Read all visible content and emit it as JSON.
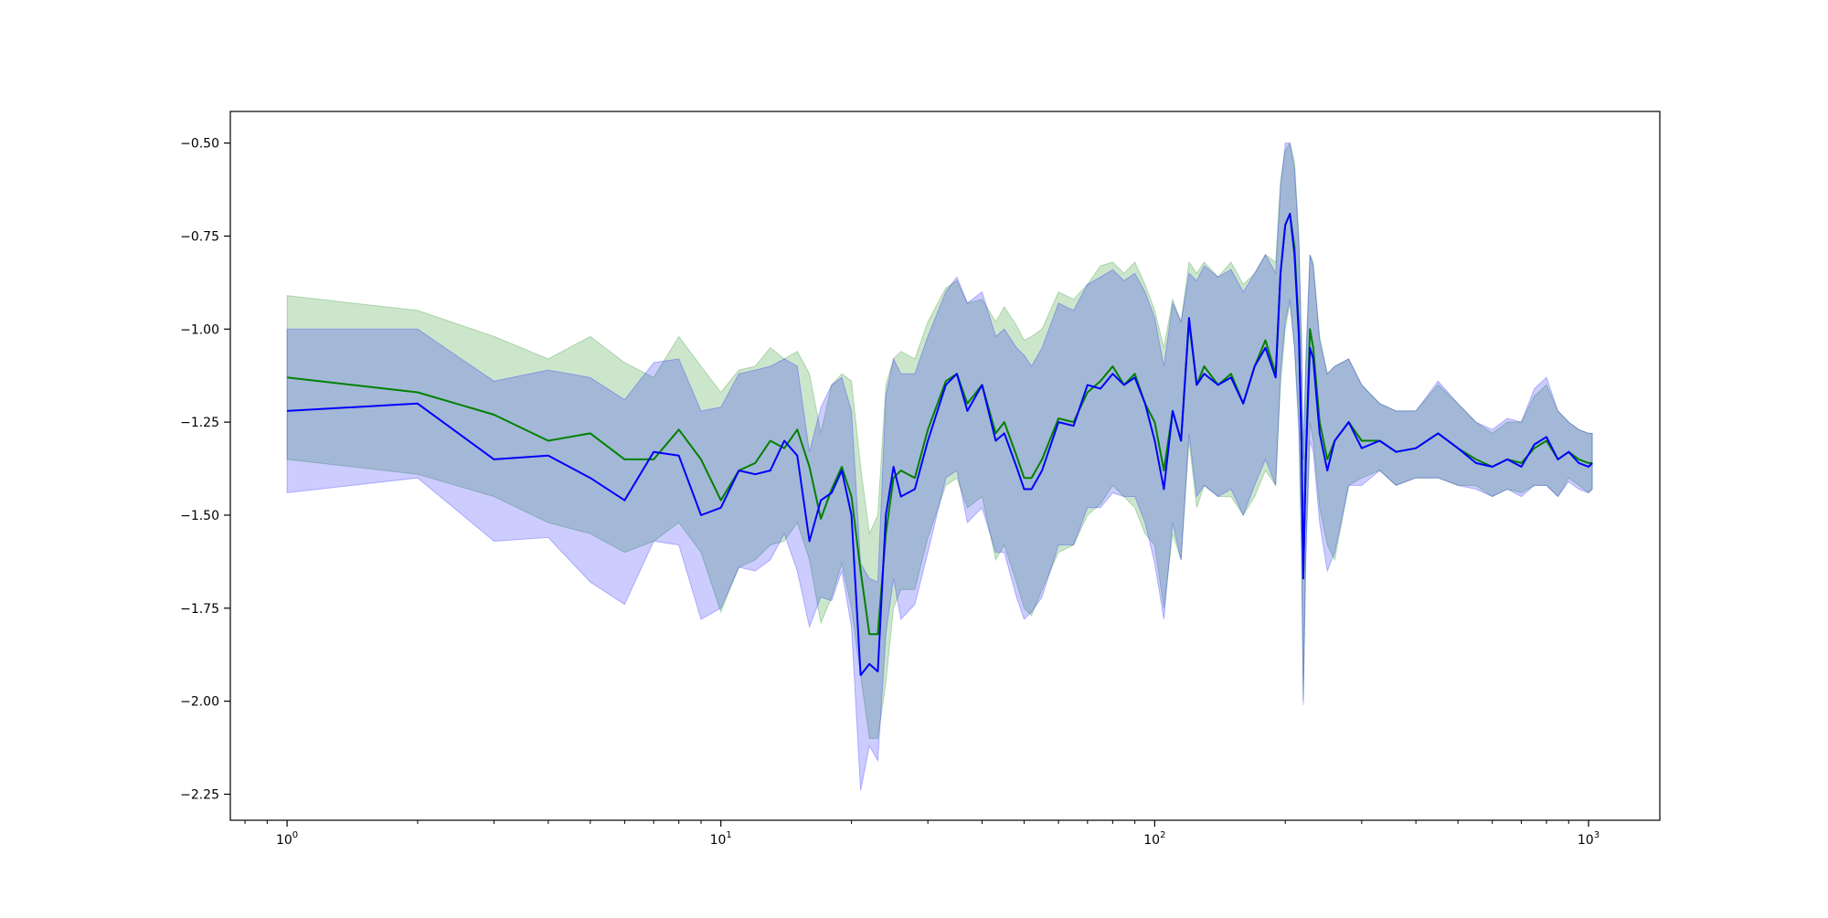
{
  "chart_data": {
    "type": "line",
    "title": "",
    "xlabel": "",
    "ylabel": "",
    "xscale": "log",
    "xlim": [
      0.74,
      1460
    ],
    "ylim": [
      -2.32,
      -0.415
    ],
    "grid": false,
    "legend": "none",
    "x_ticks": [
      {
        "base": "10",
        "exp": "0",
        "value": 1
      },
      {
        "base": "10",
        "exp": "1",
        "value": 10
      },
      {
        "base": "10",
        "exp": "2",
        "value": 100
      },
      {
        "base": "10",
        "exp": "3",
        "value": 1000
      }
    ],
    "y_ticks": [
      {
        "label": "−0.50",
        "value": -0.5
      },
      {
        "label": "−0.75",
        "value": -0.75
      },
      {
        "label": "−1.00",
        "value": -1.0
      },
      {
        "label": "−1.25",
        "value": -1.25
      },
      {
        "label": "−1.50",
        "value": -1.5
      },
      {
        "label": "−1.75",
        "value": -1.75
      },
      {
        "label": "−2.00",
        "value": -2.0
      },
      {
        "label": "−2.25",
        "value": -2.25
      }
    ],
    "series": [
      {
        "color": "#008000",
        "band_color": "#008000",
        "band_opacity": 0.2,
        "points": [
          [
            1,
            -1.13,
            -0.91,
            -1.35
          ],
          [
            2,
            -1.17,
            -0.95,
            -1.39
          ],
          [
            3,
            -1.23,
            -1.02,
            -1.45
          ],
          [
            4,
            -1.3,
            -1.08,
            -1.52
          ],
          [
            5,
            -1.28,
            -1.02,
            -1.55
          ],
          [
            6,
            -1.35,
            -1.09,
            -1.6
          ],
          [
            7,
            -1.35,
            -1.13,
            -1.57
          ],
          [
            8,
            -1.27,
            -1.02,
            -1.52
          ],
          [
            9,
            -1.35,
            -1.1,
            -1.6
          ],
          [
            10,
            -1.46,
            -1.17,
            -1.76
          ],
          [
            11,
            -1.38,
            -1.11,
            -1.64
          ],
          [
            12,
            -1.36,
            -1.1,
            -1.62
          ],
          [
            13,
            -1.3,
            -1.05,
            -1.58
          ],
          [
            14,
            -1.32,
            -1.08,
            -1.57
          ],
          [
            15,
            -1.27,
            -1.06,
            -1.52
          ],
          [
            16,
            -1.37,
            -1.12,
            -1.62
          ],
          [
            17,
            -1.51,
            -1.28,
            -1.79
          ],
          [
            18,
            -1.43,
            -1.15,
            -1.72
          ],
          [
            19,
            -1.37,
            -1.12,
            -1.63
          ],
          [
            20,
            -1.45,
            -1.14,
            -1.75
          ],
          [
            21,
            -1.65,
            -1.37,
            -1.93
          ],
          [
            22,
            -1.82,
            -1.55,
            -2.1
          ],
          [
            23,
            -1.82,
            -1.5,
            -2.1
          ],
          [
            24,
            -1.55,
            -1.15,
            -1.95
          ],
          [
            25,
            -1.4,
            -1.08,
            -1.75
          ],
          [
            26,
            -1.38,
            -1.06,
            -1.7
          ],
          [
            28,
            -1.4,
            -1.08,
            -1.7
          ],
          [
            30,
            -1.27,
            -0.98,
            -1.56
          ],
          [
            33,
            -1.14,
            -0.89,
            -1.42
          ],
          [
            35,
            -1.12,
            -0.87,
            -1.4
          ],
          [
            37,
            -1.2,
            -0.93,
            -1.48
          ],
          [
            40,
            -1.15,
            -0.92,
            -1.45
          ],
          [
            43,
            -1.28,
            -0.98,
            -1.62
          ],
          [
            45,
            -1.25,
            -0.94,
            -1.58
          ],
          [
            48,
            -1.34,
            -0.99,
            -1.68
          ],
          [
            50,
            -1.4,
            -1.03,
            -1.75
          ],
          [
            52,
            -1.4,
            -1.02,
            -1.77
          ],
          [
            55,
            -1.35,
            -1.0,
            -1.7
          ],
          [
            60,
            -1.24,
            -0.9,
            -1.6
          ],
          [
            65,
            -1.25,
            -0.92,
            -1.58
          ],
          [
            70,
            -1.17,
            -0.88,
            -1.5
          ],
          [
            75,
            -1.14,
            -0.83,
            -1.47
          ],
          [
            80,
            -1.1,
            -0.82,
            -1.42
          ],
          [
            85,
            -1.15,
            -0.85,
            -1.45
          ],
          [
            90,
            -1.12,
            -0.82,
            -1.48
          ],
          [
            95,
            -1.2,
            -0.88,
            -1.55
          ],
          [
            100,
            -1.25,
            -0.95,
            -1.58
          ],
          [
            105,
            -1.38,
            -1.05,
            -1.75
          ],
          [
            110,
            -1.22,
            -0.92,
            -1.55
          ],
          [
            115,
            -1.3,
            -0.98,
            -1.62
          ],
          [
            120,
            -0.98,
            -0.82,
            -1.3
          ],
          [
            125,
            -1.15,
            -0.85,
            -1.48
          ],
          [
            130,
            -1.1,
            -0.82,
            -1.42
          ],
          [
            140,
            -1.15,
            -0.86,
            -1.45
          ],
          [
            150,
            -1.12,
            -0.82,
            -1.45
          ],
          [
            160,
            -1.2,
            -0.88,
            -1.5
          ],
          [
            170,
            -1.1,
            -0.85,
            -1.45
          ],
          [
            180,
            -1.03,
            -0.8,
            -1.38
          ],
          [
            190,
            -1.12,
            -0.82,
            -1.42
          ],
          [
            195,
            -0.85,
            -0.6,
            -1.15
          ],
          [
            200,
            -0.72,
            -0.52,
            -1.0
          ],
          [
            205,
            -0.69,
            -0.5,
            -0.93
          ],
          [
            210,
            -0.78,
            -0.55,
            -1.05
          ],
          [
            215,
            -1.0,
            -0.75,
            -1.25
          ],
          [
            218,
            -1.32,
            -1.05,
            -1.58
          ],
          [
            220,
            -1.67,
            -1.35,
            -2.0
          ],
          [
            223,
            -1.35,
            -1.1,
            -1.6
          ],
          [
            228,
            -1.0,
            -0.8,
            -1.25
          ],
          [
            232,
            -1.05,
            -0.82,
            -1.3
          ],
          [
            240,
            -1.25,
            -1.02,
            -1.48
          ],
          [
            250,
            -1.35,
            -1.12,
            -1.58
          ],
          [
            260,
            -1.3,
            -1.1,
            -1.62
          ],
          [
            280,
            -1.25,
            -1.08,
            -1.42
          ],
          [
            300,
            -1.3,
            -1.15,
            -1.4
          ],
          [
            330,
            -1.3,
            -1.2,
            -1.38
          ],
          [
            360,
            -1.33,
            -1.22,
            -1.42
          ],
          [
            400,
            -1.32,
            -1.22,
            -1.4
          ],
          [
            450,
            -1.28,
            -1.15,
            -1.4
          ],
          [
            500,
            -1.32,
            -1.2,
            -1.42
          ],
          [
            550,
            -1.35,
            -1.25,
            -1.42
          ],
          [
            600,
            -1.37,
            -1.28,
            -1.45
          ],
          [
            650,
            -1.35,
            -1.25,
            -1.43
          ],
          [
            700,
            -1.36,
            -1.25,
            -1.44
          ],
          [
            750,
            -1.32,
            -1.18,
            -1.42
          ],
          [
            800,
            -1.3,
            -1.15,
            -1.42
          ],
          [
            850,
            -1.35,
            -1.22,
            -1.45
          ],
          [
            900,
            -1.33,
            -1.25,
            -1.4
          ],
          [
            950,
            -1.35,
            -1.27,
            -1.42
          ],
          [
            1000,
            -1.36,
            -1.28,
            -1.44
          ],
          [
            1020,
            -1.36,
            -1.28,
            -1.43
          ]
        ]
      },
      {
        "color": "#0000ff",
        "band_color": "#0000ff",
        "band_opacity": 0.2,
        "points": [
          [
            1,
            -1.22,
            -1.0,
            -1.44
          ],
          [
            2,
            -1.2,
            -1.0,
            -1.4
          ],
          [
            3,
            -1.35,
            -1.14,
            -1.57
          ],
          [
            4,
            -1.34,
            -1.11,
            -1.56
          ],
          [
            5,
            -1.4,
            -1.13,
            -1.68
          ],
          [
            6,
            -1.46,
            -1.19,
            -1.74
          ],
          [
            7,
            -1.33,
            -1.09,
            -1.57
          ],
          [
            8,
            -1.34,
            -1.08,
            -1.58
          ],
          [
            9,
            -1.5,
            -1.22,
            -1.78
          ],
          [
            10,
            -1.48,
            -1.21,
            -1.75
          ],
          [
            11,
            -1.38,
            -1.12,
            -1.64
          ],
          [
            12,
            -1.39,
            -1.11,
            -1.65
          ],
          [
            13,
            -1.38,
            -1.1,
            -1.62
          ],
          [
            14,
            -1.3,
            -1.08,
            -1.55
          ],
          [
            15,
            -1.34,
            -1.1,
            -1.65
          ],
          [
            16,
            -1.57,
            -1.33,
            -1.8
          ],
          [
            17,
            -1.46,
            -1.21,
            -1.72
          ],
          [
            18,
            -1.44,
            -1.15,
            -1.73
          ],
          [
            19,
            -1.38,
            -1.13,
            -1.65
          ],
          [
            20,
            -1.5,
            -1.22,
            -1.8
          ],
          [
            21,
            -1.93,
            -1.63,
            -2.24
          ],
          [
            22,
            -1.9,
            -1.67,
            -2.12
          ],
          [
            23,
            -1.92,
            -1.68,
            -2.16
          ],
          [
            24,
            -1.5,
            -1.18,
            -1.82
          ],
          [
            25,
            -1.37,
            -1.08,
            -1.67
          ],
          [
            26,
            -1.45,
            -1.12,
            -1.78
          ],
          [
            28,
            -1.43,
            -1.12,
            -1.74
          ],
          [
            30,
            -1.3,
            -1.02,
            -1.6
          ],
          [
            33,
            -1.15,
            -0.9,
            -1.4
          ],
          [
            35,
            -1.12,
            -0.86,
            -1.38
          ],
          [
            37,
            -1.22,
            -0.93,
            -1.52
          ],
          [
            40,
            -1.15,
            -0.9,
            -1.48
          ],
          [
            43,
            -1.3,
            -1.02,
            -1.6
          ],
          [
            45,
            -1.28,
            -1.0,
            -1.6
          ],
          [
            48,
            -1.37,
            -1.05,
            -1.72
          ],
          [
            50,
            -1.43,
            -1.07,
            -1.78
          ],
          [
            52,
            -1.43,
            -1.1,
            -1.76
          ],
          [
            55,
            -1.38,
            -1.05,
            -1.72
          ],
          [
            60,
            -1.25,
            -0.93,
            -1.58
          ],
          [
            65,
            -1.26,
            -0.95,
            -1.58
          ],
          [
            70,
            -1.15,
            -0.88,
            -1.48
          ],
          [
            75,
            -1.16,
            -0.86,
            -1.48
          ],
          [
            80,
            -1.12,
            -0.84,
            -1.44
          ],
          [
            85,
            -1.15,
            -0.87,
            -1.45
          ],
          [
            90,
            -1.13,
            -0.85,
            -1.45
          ],
          [
            95,
            -1.2,
            -0.9,
            -1.52
          ],
          [
            100,
            -1.3,
            -0.97,
            -1.63
          ],
          [
            105,
            -1.43,
            -1.1,
            -1.78
          ],
          [
            110,
            -1.22,
            -0.93,
            -1.52
          ],
          [
            115,
            -1.3,
            -0.98,
            -1.62
          ],
          [
            120,
            -0.97,
            -0.85,
            -1.28
          ],
          [
            125,
            -1.15,
            -0.87,
            -1.45
          ],
          [
            130,
            -1.12,
            -0.83,
            -1.42
          ],
          [
            140,
            -1.15,
            -0.86,
            -1.45
          ],
          [
            150,
            -1.13,
            -0.84,
            -1.43
          ],
          [
            160,
            -1.2,
            -0.9,
            -1.5
          ],
          [
            170,
            -1.1,
            -0.85,
            -1.42
          ],
          [
            180,
            -1.05,
            -0.8,
            -1.35
          ],
          [
            190,
            -1.13,
            -0.85,
            -1.42
          ],
          [
            195,
            -0.85,
            -0.62,
            -1.12
          ],
          [
            200,
            -0.72,
            -0.5,
            -0.98
          ],
          [
            205,
            -0.69,
            -0.5,
            -0.92
          ],
          [
            210,
            -0.8,
            -0.57,
            -1.05
          ],
          [
            215,
            -1.02,
            -0.77,
            -1.28
          ],
          [
            218,
            -1.3,
            -1.03,
            -1.6
          ],
          [
            220,
            -1.67,
            -1.35,
            -2.01
          ],
          [
            223,
            -1.35,
            -1.08,
            -1.62
          ],
          [
            228,
            -1.05,
            -0.8,
            -1.3
          ],
          [
            232,
            -1.08,
            -0.83,
            -1.33
          ],
          [
            240,
            -1.28,
            -1.03,
            -1.52
          ],
          [
            250,
            -1.38,
            -1.12,
            -1.65
          ],
          [
            260,
            -1.3,
            -1.1,
            -1.6
          ],
          [
            280,
            -1.25,
            -1.08,
            -1.42
          ],
          [
            300,
            -1.32,
            -1.15,
            -1.42
          ],
          [
            330,
            -1.3,
            -1.2,
            -1.38
          ],
          [
            360,
            -1.33,
            -1.22,
            -1.42
          ],
          [
            400,
            -1.32,
            -1.22,
            -1.4
          ],
          [
            450,
            -1.28,
            -1.14,
            -1.4
          ],
          [
            500,
            -1.32,
            -1.2,
            -1.42
          ],
          [
            550,
            -1.36,
            -1.25,
            -1.43
          ],
          [
            600,
            -1.37,
            -1.27,
            -1.45
          ],
          [
            650,
            -1.35,
            -1.24,
            -1.43
          ],
          [
            700,
            -1.37,
            -1.25,
            -1.45
          ],
          [
            750,
            -1.31,
            -1.16,
            -1.42
          ],
          [
            800,
            -1.29,
            -1.13,
            -1.42
          ],
          [
            850,
            -1.35,
            -1.22,
            -1.45
          ],
          [
            900,
            -1.33,
            -1.25,
            -1.41
          ],
          [
            950,
            -1.36,
            -1.27,
            -1.43
          ],
          [
            1000,
            -1.37,
            -1.28,
            -1.44
          ],
          [
            1020,
            -1.36,
            -1.28,
            -1.43
          ]
        ]
      }
    ]
  }
}
